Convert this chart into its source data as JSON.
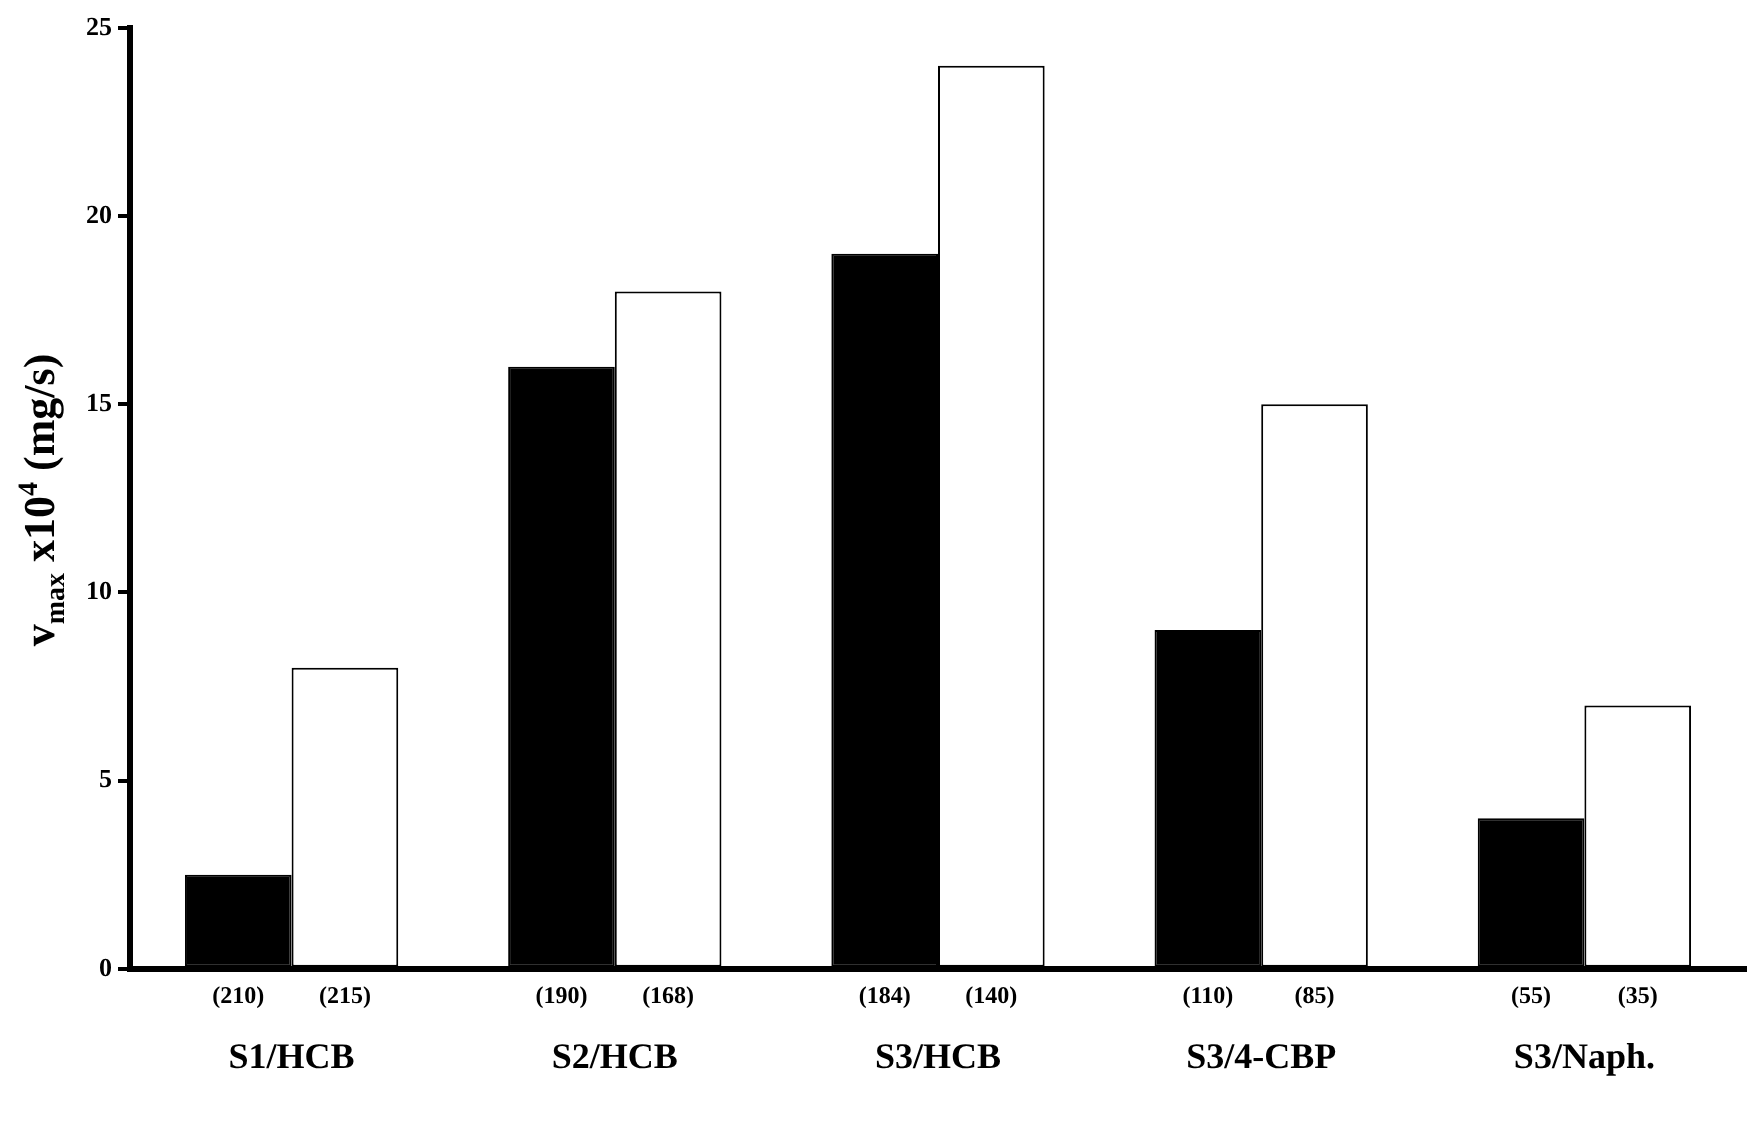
{
  "chart_data": {
    "type": "bar",
    "ylabel": "v$_{max}$ x10$^{4}$ (mg/s)",
    "categories": [
      "S1/HCB",
      "S2/HCB",
      "S3/HCB",
      "S3/4-CBP",
      "S3/Naph."
    ],
    "series": [
      {
        "color": "#000000",
        "values": [
          2.5,
          16,
          19,
          9,
          4
        ]
      },
      {
        "color": "#ffffff",
        "values": [
          8,
          18,
          24,
          15,
          7
        ]
      }
    ],
    "annotations": [
      "(210)",
      "(215)",
      "(190)",
      "(168)",
      "(184)",
      "(140)",
      "(110)",
      "(85)",
      "(55)",
      "(35)"
    ],
    "ylim": [
      0,
      25
    ],
    "yticks": [
      0,
      5,
      10,
      15,
      20,
      25
    ],
    "grid": false,
    "legend": false
  }
}
